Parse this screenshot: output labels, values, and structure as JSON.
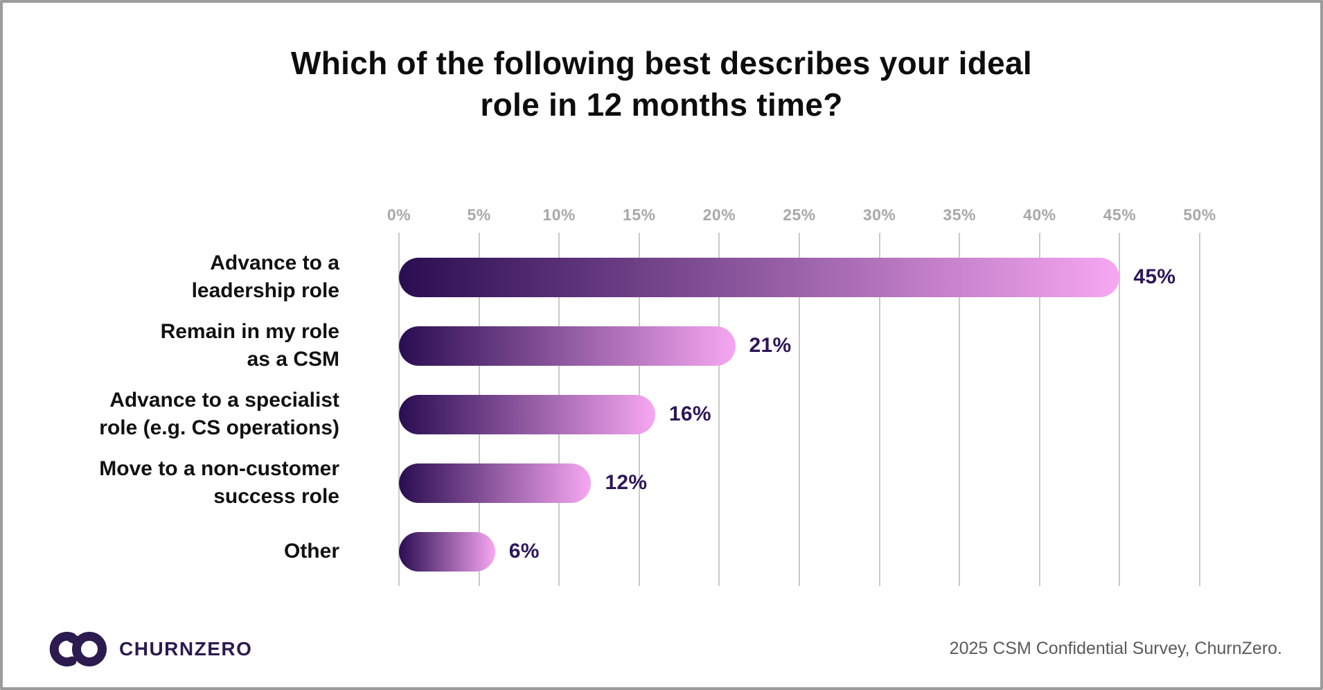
{
  "title": "Which of the following best describes your ideal\nrole in 12 months time?",
  "chart_data": {
    "type": "bar",
    "orientation": "horizontal",
    "title": "Which of the following best describes your ideal role in 12 months time?",
    "categories": [
      "Advance to a\nleadership role",
      "Remain in my role\nas a CSM",
      "Advance to a specialist\nrole (e.g. CS operations)",
      "Move to a non-customer\nsuccess role",
      "Other"
    ],
    "values": [
      45,
      21,
      16,
      12,
      6
    ],
    "value_labels": [
      "45%",
      "21%",
      "16%",
      "12%",
      "6%"
    ],
    "value_suffix": "%",
    "x_ticks": [
      "0%",
      "5%",
      "10%",
      "15%",
      "20%",
      "25%",
      "30%",
      "35%",
      "40%",
      "45%",
      "50%"
    ],
    "xlim": [
      0,
      50
    ],
    "grid": true,
    "legend": false,
    "colors": {
      "bar_gradient_start": "#2a0d51",
      "bar_gradient_end": "#f7a7f1",
      "value_label": "#2e1658",
      "tick": "#a8a8a8",
      "gridline": "#c9c9c9",
      "category_label": "#111111"
    }
  },
  "footer": {
    "logo_wordmark": "CHURNZERO",
    "logo_color": "#2b1b4f",
    "source": "2025 CSM Confidential Survey, ChurnZero."
  }
}
